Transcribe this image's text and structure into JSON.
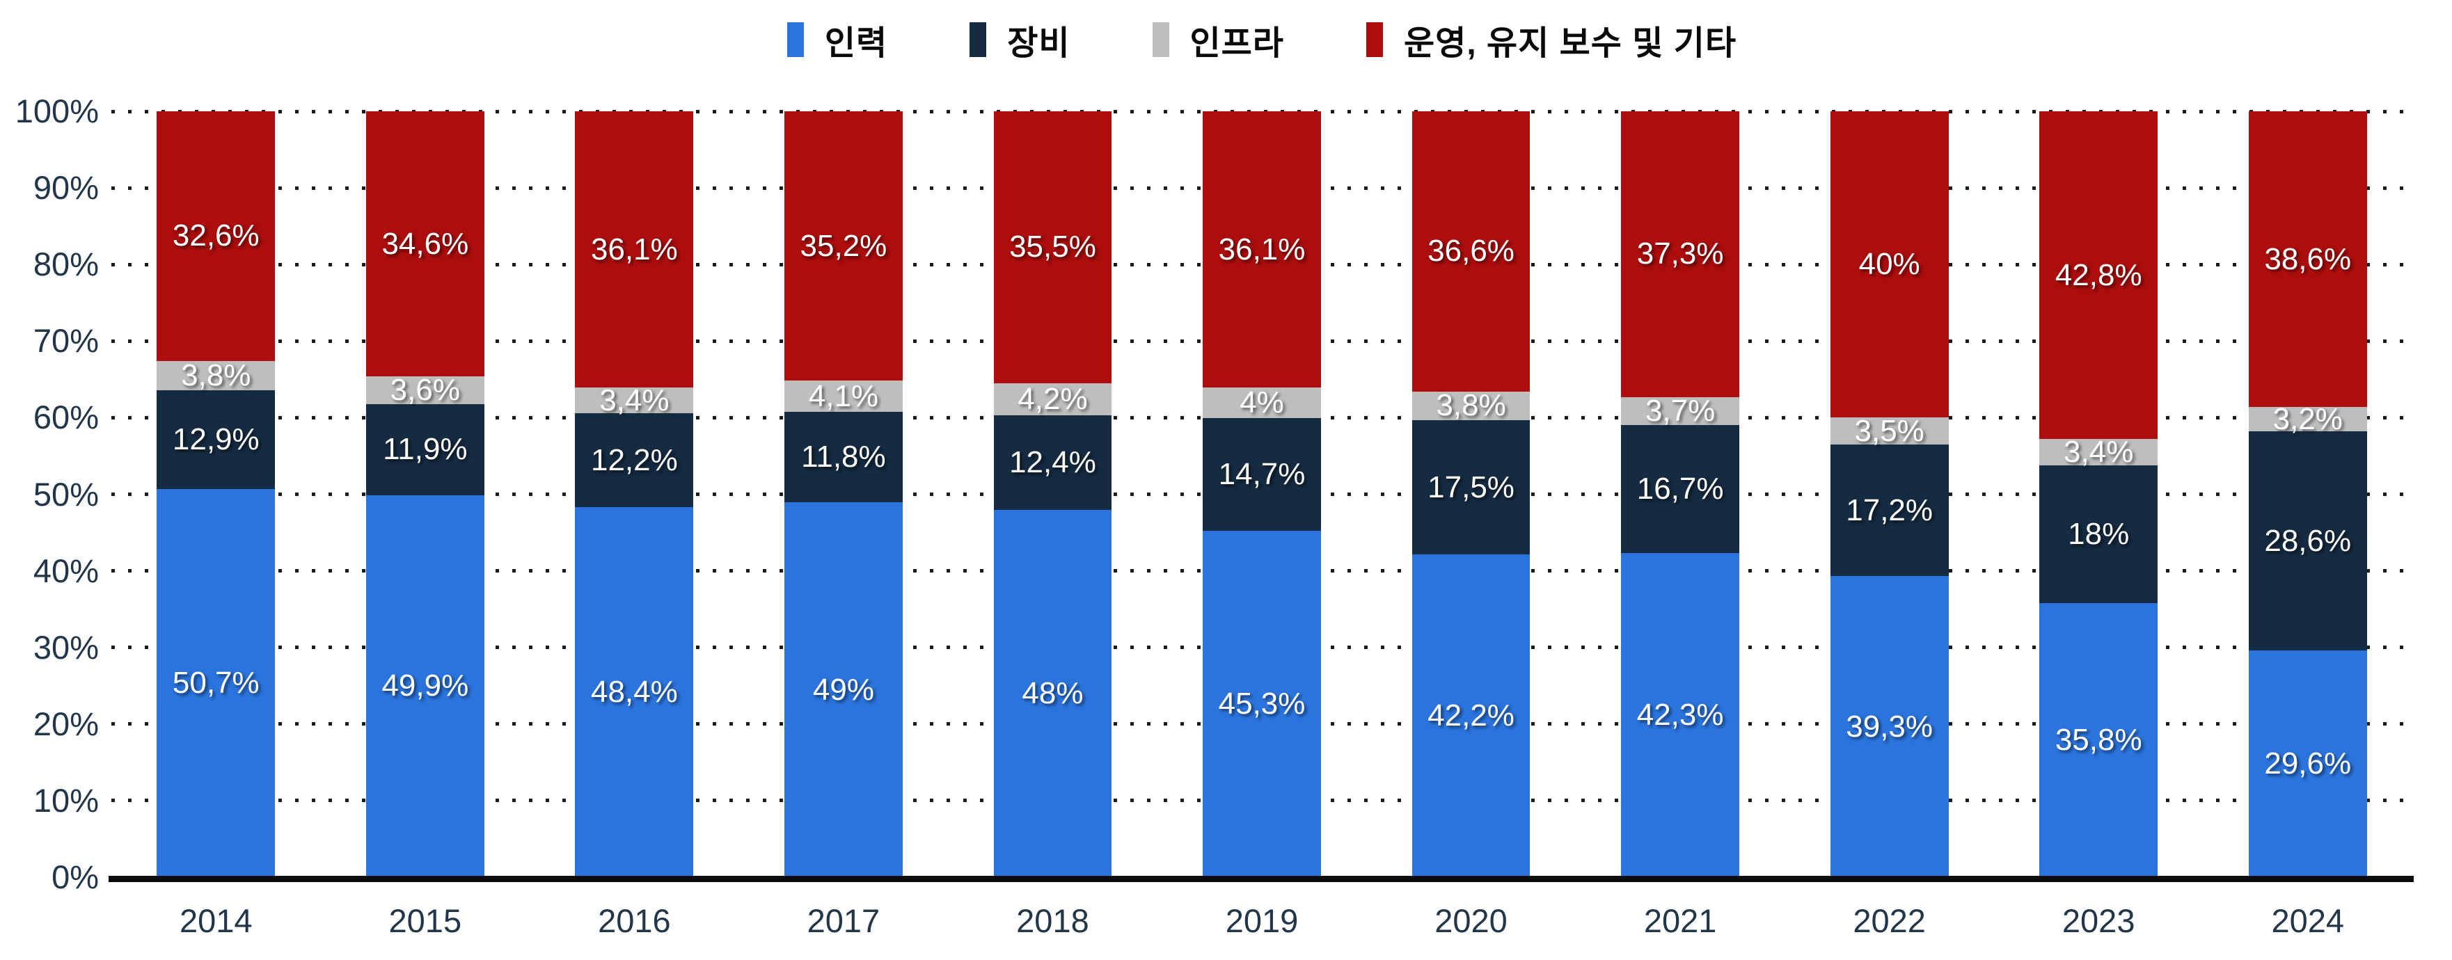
{
  "chart_data": {
    "type": "bar",
    "stacked": true,
    "percent_stacked": true,
    "title": "",
    "xlabel": "",
    "ylabel": "",
    "ylim": [
      0,
      100
    ],
    "ytick_step": 10,
    "yticks": [
      "0%",
      "10%",
      "20%",
      "30%",
      "40%",
      "50%",
      "60%",
      "70%",
      "80%",
      "90%",
      "100%"
    ],
    "grid": "horizontal-dotted",
    "legend_position": "top-center",
    "decimal_separator": ",",
    "categories": [
      "2014",
      "2015",
      "2016",
      "2017",
      "2018",
      "2019",
      "2020",
      "2021",
      "2022",
      "2023",
      "2024"
    ],
    "series": [
      {
        "key": "personnel",
        "name": "인력",
        "color": "#2B74DD",
        "values": [
          50.7,
          49.9,
          48.4,
          49,
          48,
          45.3,
          42.2,
          42.3,
          39.3,
          35.8,
          29.6
        ],
        "labels": [
          "50,7%",
          "49,9%",
          "48,4%",
          "49%",
          "48%",
          "45,3%",
          "42,2%",
          "42,3%",
          "39,3%",
          "35,8%",
          "29,6%"
        ]
      },
      {
        "key": "equipment",
        "name": "장비",
        "color": "#152B41",
        "values": [
          12.9,
          11.9,
          12.2,
          11.8,
          12.4,
          14.7,
          17.5,
          16.7,
          17.2,
          18,
          28.6
        ],
        "labels": [
          "12,9%",
          "11,9%",
          "12,2%",
          "11,8%",
          "12,4%",
          "14,7%",
          "17,5%",
          "16,7%",
          "17,2%",
          "18%",
          "28,6%"
        ]
      },
      {
        "key": "infrastructure",
        "name": "인프라",
        "color": "#BEBEBE",
        "values": [
          3.8,
          3.6,
          3.4,
          4.1,
          4.2,
          4,
          3.8,
          3.7,
          3.5,
          3.4,
          3.2
        ],
        "labels": [
          "3,8%",
          "3,6%",
          "3,4%",
          "4,1%",
          "4,2%",
          "4%",
          "3,8%",
          "3,7%",
          "3,5%",
          "3,4%",
          "3,2%"
        ]
      },
      {
        "key": "operations",
        "name": "운영, 유지 보수 및 기타",
        "color": "#AC0D0D",
        "values": [
          32.6,
          34.6,
          36.1,
          35.2,
          35.5,
          36.1,
          36.6,
          37.3,
          40,
          42.8,
          38.6
        ],
        "labels": [
          "32,6%",
          "34,6%",
          "36,1%",
          "35,2%",
          "35,5%",
          "36,1%",
          "36,6%",
          "37,3%",
          "40%",
          "42,8%",
          "38,6%"
        ]
      }
    ],
    "colors": {
      "axis_text": "#223649",
      "legend_text": "#0A0A0A",
      "gridline": "#1C1C1C",
      "axis_line": "#0C0C0C",
      "data_label": "#FFFFFF"
    }
  }
}
